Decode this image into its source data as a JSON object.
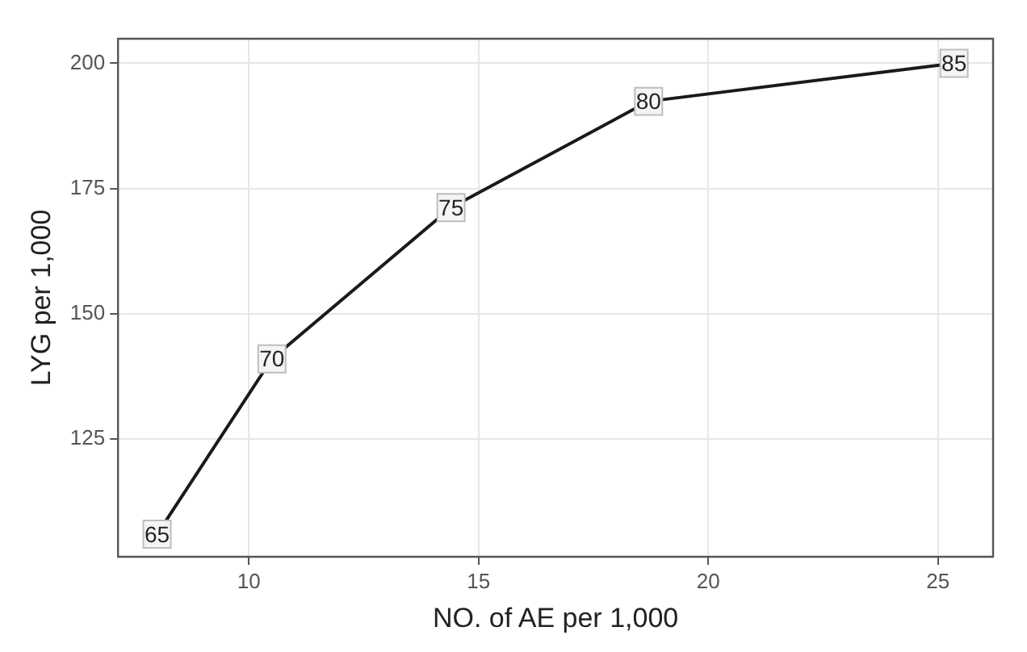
{
  "chart_data": {
    "type": "line",
    "xlabel": "NO. of AE per 1,000",
    "ylabel": "LYG per 1,000",
    "x": [
      8.0,
      10.5,
      14.4,
      18.7,
      25.35
    ],
    "series": [
      {
        "color": "#1a1a1a",
        "values": [
          106,
          141,
          171.2,
          192.4,
          200
        ]
      }
    ],
    "xlim": [
      7.15,
      26.2
    ],
    "xticks": [
      10,
      15,
      20,
      25
    ],
    "ylim": [
      101.5,
      204.9
    ],
    "yticks": [
      125,
      150,
      175,
      200
    ],
    "grid": true,
    "marker": "square",
    "line_style": "solid",
    "annotations": [
      {
        "text": "65",
        "x": 8.0,
        "y": 106
      },
      {
        "text": "70",
        "x": 10.5,
        "y": 141
      },
      {
        "text": "75",
        "x": 14.4,
        "y": 171.2
      },
      {
        "text": "80",
        "x": 18.7,
        "y": 192.4
      },
      {
        "text": "85",
        "x": 25.35,
        "y": 200
      }
    ]
  }
}
